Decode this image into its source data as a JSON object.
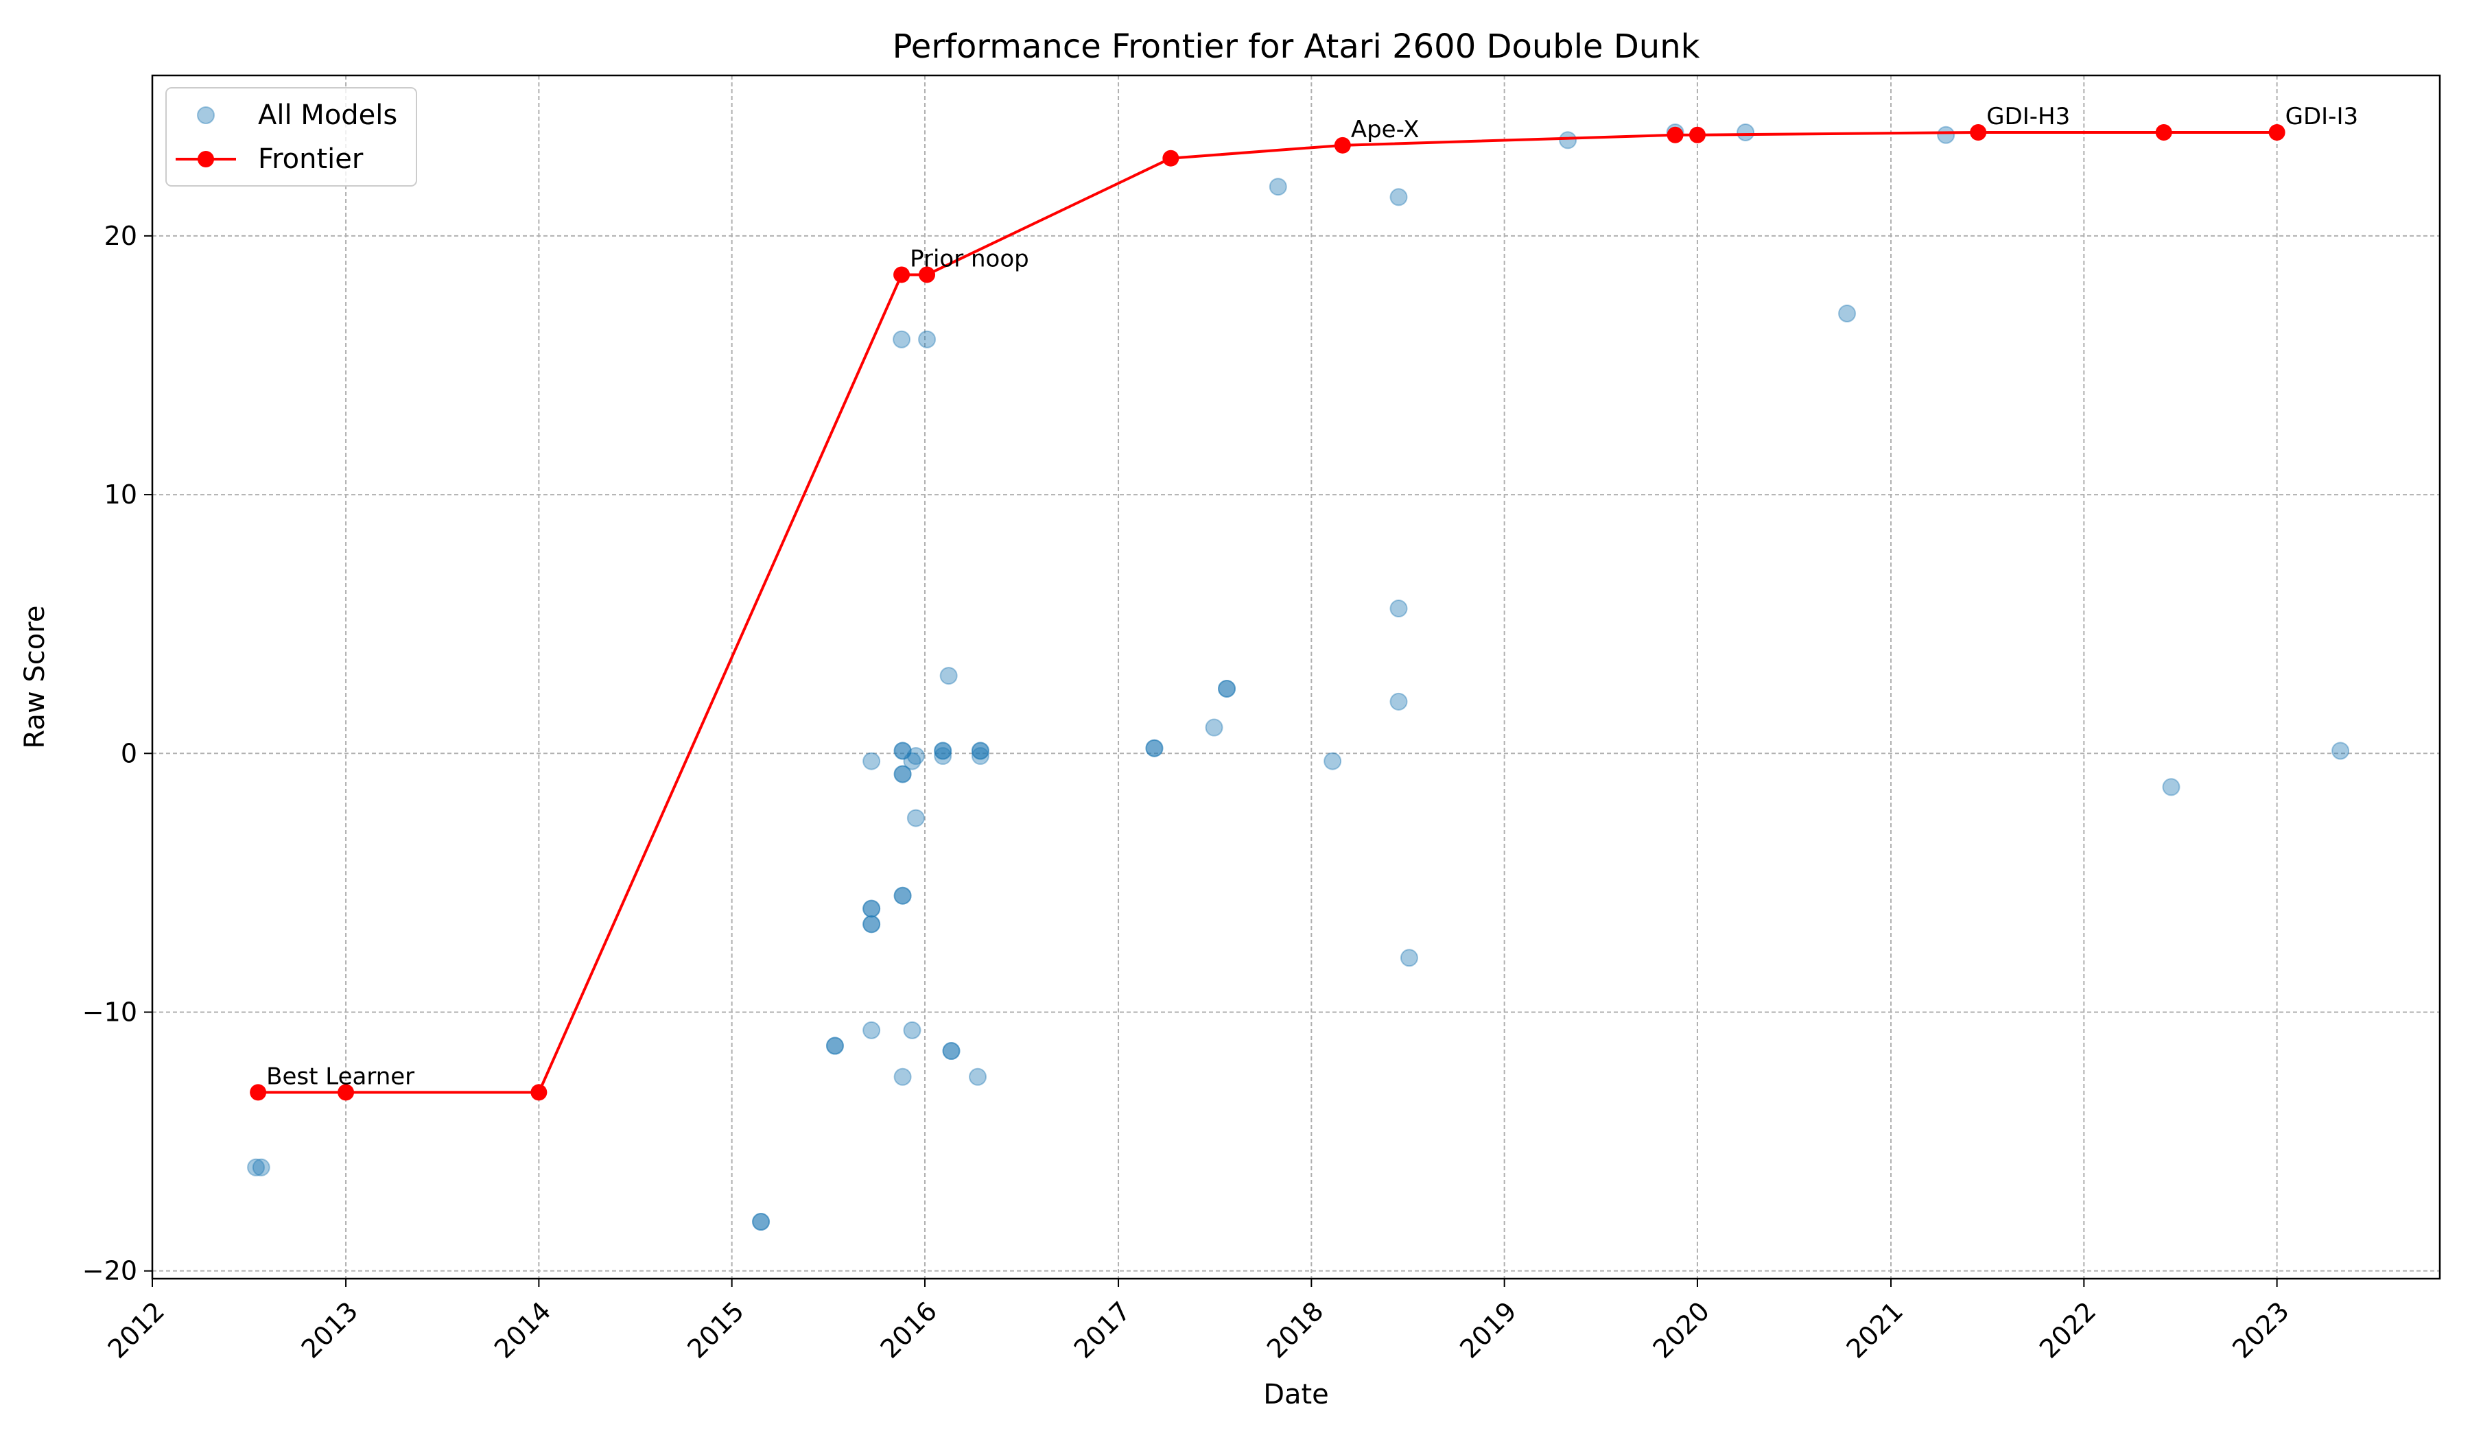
{
  "chart_data": {
    "type": "scatter",
    "title": "Performance Frontier for Atari 2600 Double Dunk",
    "xlabel": "Date",
    "ylabel": "Raw Score",
    "xlim": [
      "2012-01-01",
      "2023-11-05"
    ],
    "ylim": [
      -20.3,
      26.2
    ],
    "x_ticks": [
      "2012",
      "2013",
      "2014",
      "2015",
      "2016",
      "2017",
      "2018",
      "2019",
      "2020",
      "2021",
      "2022",
      "2023"
    ],
    "y_ticks": [
      -20,
      -10,
      0,
      10,
      20
    ],
    "grid": true,
    "legend": {
      "placement": "top-left",
      "entries": [
        {
          "label": "All Models",
          "series": "all_models"
        },
        {
          "label": "Frontier",
          "series": "frontier"
        }
      ]
    },
    "colors": {
      "all_models": "#1f77b4",
      "frontier": "#ff0000"
    },
    "series": [
      {
        "name": "All Models",
        "kind": "scatter",
        "points": [
          {
            "x": "2012-07-15",
            "y": -16
          },
          {
            "x": "2012-07-25",
            "y": -16
          },
          {
            "x": "2015-02-25",
            "y": -18.1
          },
          {
            "x": "2015-02-25",
            "y": -18.1
          },
          {
            "x": "2015-07-15",
            "y": -11.3
          },
          {
            "x": "2015-07-15",
            "y": -11.3
          },
          {
            "x": "2015-09-22",
            "y": -0.3
          },
          {
            "x": "2015-09-22",
            "y": -6
          },
          {
            "x": "2015-09-22",
            "y": -6
          },
          {
            "x": "2015-09-22",
            "y": -6.6
          },
          {
            "x": "2015-09-22",
            "y": -6.6
          },
          {
            "x": "2015-09-22",
            "y": -10.7
          },
          {
            "x": "2015-11-18",
            "y": 16
          },
          {
            "x": "2015-11-20",
            "y": 0.1
          },
          {
            "x": "2015-11-20",
            "y": 0.1
          },
          {
            "x": "2015-11-20",
            "y": -0.8
          },
          {
            "x": "2015-11-20",
            "y": -0.8
          },
          {
            "x": "2015-11-20",
            "y": -5.5
          },
          {
            "x": "2015-11-20",
            "y": -5.5
          },
          {
            "x": "2015-11-20",
            "y": -12.5
          },
          {
            "x": "2015-12-08",
            "y": -0.3
          },
          {
            "x": "2015-12-08",
            "y": -10.7
          },
          {
            "x": "2015-12-15",
            "y": -0.1
          },
          {
            "x": "2015-12-15",
            "y": -2.5
          },
          {
            "x": "2016-01-05",
            "y": 16
          },
          {
            "x": "2016-02-04",
            "y": 0.1
          },
          {
            "x": "2016-02-04",
            "y": 0.1
          },
          {
            "x": "2016-02-04",
            "y": -0.1
          },
          {
            "x": "2016-02-15",
            "y": 3
          },
          {
            "x": "2016-02-20",
            "y": -11.5
          },
          {
            "x": "2016-02-20",
            "y": -11.5
          },
          {
            "x": "2016-04-10",
            "y": -12.5
          },
          {
            "x": "2016-04-15",
            "y": 0.1
          },
          {
            "x": "2016-04-15",
            "y": 0.1
          },
          {
            "x": "2016-04-15",
            "y": -0.1
          },
          {
            "x": "2017-03-10",
            "y": 0.2
          },
          {
            "x": "2017-03-10",
            "y": 0.2
          },
          {
            "x": "2017-07-01",
            "y": 1
          },
          {
            "x": "2017-07-25",
            "y": 2.5
          },
          {
            "x": "2017-07-25",
            "y": 2.5
          },
          {
            "x": "2017-10-30",
            "y": 21.9
          },
          {
            "x": "2018-02-10",
            "y": -0.3
          },
          {
            "x": "2018-06-15",
            "y": 21.5
          },
          {
            "x": "2018-06-15",
            "y": 5.6
          },
          {
            "x": "2018-06-15",
            "y": 2
          },
          {
            "x": "2018-07-05",
            "y": -7.9
          },
          {
            "x": "2019-05-01",
            "y": 23.7
          },
          {
            "x": "2019-11-20",
            "y": 24
          },
          {
            "x": "2020-04-01",
            "y": 24
          },
          {
            "x": "2020-10-10",
            "y": 17
          },
          {
            "x": "2021-04-15",
            "y": 23.9
          },
          {
            "x": "2022-06-15",
            "y": -1.3
          },
          {
            "x": "2023-05-01",
            "y": 0.1
          }
        ]
      },
      {
        "name": "Frontier",
        "kind": "line",
        "points": [
          {
            "x": "2012-07-19",
            "y": -13.1
          },
          {
            "x": "2013-01-01",
            "y": -13.1
          },
          {
            "x": "2014-01-01",
            "y": -13.1
          },
          {
            "x": "2015-11-18",
            "y": 18.5
          },
          {
            "x": "2016-01-05",
            "y": 18.5
          },
          {
            "x": "2017-04-10",
            "y": 23
          },
          {
            "x": "2018-03-01",
            "y": 23.5
          },
          {
            "x": "2019-11-20",
            "y": 23.9
          },
          {
            "x": "2020-01-01",
            "y": 23.9
          },
          {
            "x": "2021-06-15",
            "y": 24
          },
          {
            "x": "2022-06-01",
            "y": 24
          },
          {
            "x": "2023-01-01",
            "y": 24
          }
        ]
      }
    ],
    "annotations": [
      {
        "text": "Best Learner",
        "x": "2012-07-19",
        "y": -13.1
      },
      {
        "text": "Prior noop",
        "x": "2015-11-18",
        "y": 18.5
      },
      {
        "text": "Ape-X",
        "x": "2018-03-01",
        "y": 23.5
      },
      {
        "text": "GDI-H3",
        "x": "2021-06-15",
        "y": 24
      },
      {
        "text": "GDI-I3",
        "x": "2023-01-01",
        "y": 24
      }
    ]
  }
}
